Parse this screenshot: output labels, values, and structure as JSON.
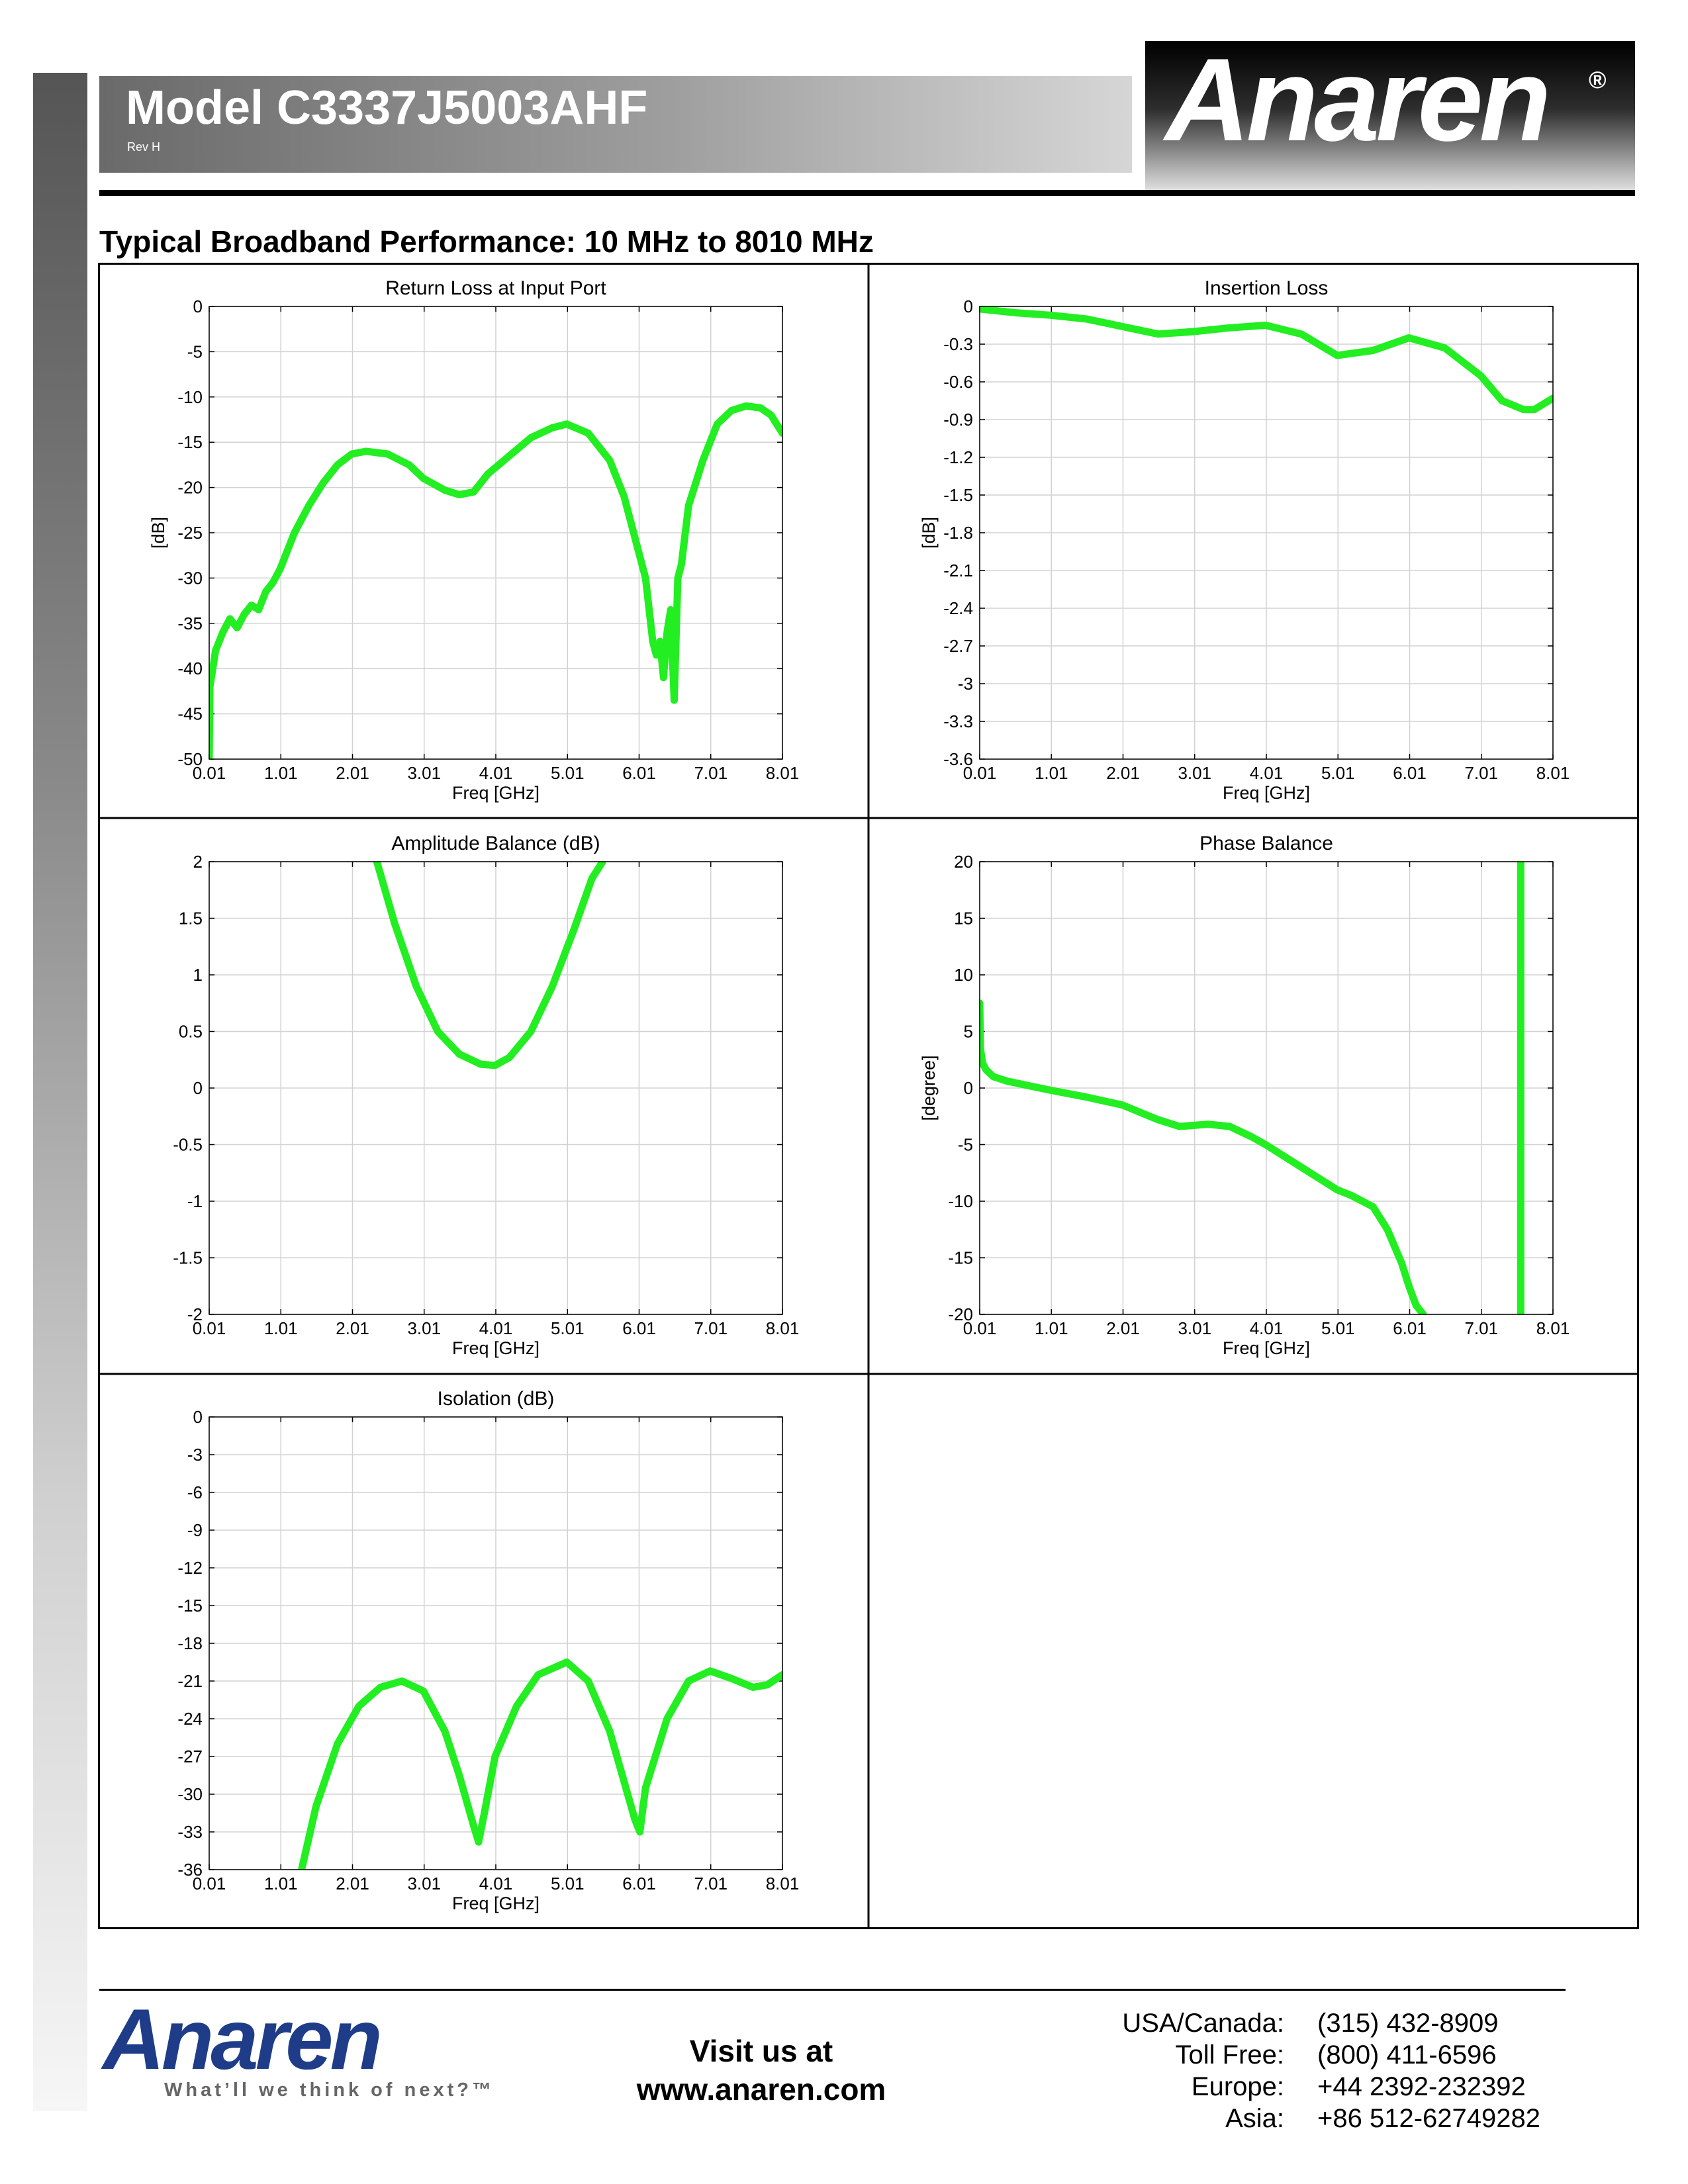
{
  "header": {
    "model_title": "Model C3337J5003AHF",
    "revision": "Rev H",
    "logo_text": "Anaren",
    "logo_mark": "®"
  },
  "section_title": "Typical Broadband Performance: 10 MHz to 8010 MHz",
  "chart_data": [
    {
      "type": "line",
      "title": "Return Loss at Input Port",
      "xlabel": "Freq [GHz]",
      "ylabel": "[dB]",
      "xticks": [
        "0.01",
        "1.01",
        "2.01",
        "3.01",
        "4.01",
        "5.01",
        "6.01",
        "7.01",
        "8.01"
      ],
      "yticks": [
        "0",
        "-5",
        "-10",
        "-15",
        "-20",
        "-25",
        "-30",
        "-35",
        "-40",
        "-45",
        "-50"
      ],
      "xlim": [
        0.01,
        8.01
      ],
      "ylim": [
        -50,
        0
      ],
      "grid": true,
      "color": "#22ee22",
      "series": [
        {
          "x": [
            0.01,
            0.02,
            0.1,
            0.2,
            0.3,
            0.4,
            0.5,
            0.6,
            0.7,
            0.8,
            0.9,
            1.0,
            1.1,
            1.2,
            1.4,
            1.6,
            1.8,
            2.0,
            2.2,
            2.5,
            2.8,
            3.0,
            3.3,
            3.5,
            3.7,
            3.9,
            4.2,
            4.5,
            4.8,
            5.0,
            5.3,
            5.6,
            5.8,
            6.0,
            6.1,
            6.2,
            6.25,
            6.3,
            6.35,
            6.4,
            6.45,
            6.5,
            6.55,
            6.6,
            6.7,
            6.9,
            7.1,
            7.3,
            7.5,
            7.7,
            7.85,
            8.01
          ],
          "y": [
            -50,
            -42,
            -38,
            -36,
            -34.5,
            -35.5,
            -34,
            -33,
            -33.5,
            -31.5,
            -30.5,
            -29,
            -27,
            -25,
            -22,
            -19.5,
            -17.5,
            -16.3,
            -16,
            -16.3,
            -17.5,
            -19,
            -20.3,
            -20.8,
            -20.5,
            -18.5,
            -16.5,
            -14.5,
            -13.4,
            -13,
            -14,
            -17,
            -21,
            -27,
            -30,
            -37,
            -38.5,
            -37,
            -41,
            -36,
            -33.5,
            -43.5,
            -30,
            -28.5,
            -22,
            -17,
            -13,
            -11.5,
            -11,
            -11.2,
            -12,
            -14
          ]
        }
      ]
    },
    {
      "type": "line",
      "title": "Insertion Loss",
      "xlabel": "Freq [GHz]",
      "ylabel": "[dB]",
      "xticks": [
        "0.01",
        "1.01",
        "2.01",
        "3.01",
        "4.01",
        "5.01",
        "6.01",
        "7.01",
        "8.01"
      ],
      "yticks": [
        "0",
        "-0.3",
        "-0.6",
        "-0.9",
        "-1.2",
        "-1.5",
        "-1.8",
        "-2.1",
        "-2.4",
        "-2.7",
        "-3",
        "-3.3",
        "-3.6"
      ],
      "xlim": [
        0.01,
        8.01
      ],
      "ylim": [
        -3.6,
        0
      ],
      "grid": true,
      "color": "#22ee22",
      "series": [
        {
          "x": [
            0.01,
            0.5,
            1.0,
            1.5,
            2.0,
            2.5,
            3.0,
            3.5,
            4.0,
            4.5,
            5.0,
            5.5,
            6.0,
            6.5,
            7.0,
            7.3,
            7.6,
            7.75,
            8.01
          ],
          "y": [
            -0.02,
            -0.05,
            -0.07,
            -0.1,
            -0.16,
            -0.22,
            -0.2,
            -0.17,
            -0.15,
            -0.22,
            -0.39,
            -0.35,
            -0.25,
            -0.33,
            -0.55,
            -0.75,
            -0.82,
            -0.82,
            -0.73
          ]
        }
      ]
    },
    {
      "type": "line",
      "title": "Amplitude Balance (dB)",
      "xlabel": "Freq [GHz]",
      "ylabel": "",
      "xticks": [
        "0.01",
        "1.01",
        "2.01",
        "3.01",
        "4.01",
        "5.01",
        "6.01",
        "7.01",
        "8.01"
      ],
      "yticks": [
        "2",
        "1.5",
        "1",
        "0.5",
        "0",
        "-0.5",
        "-1",
        "-1.5",
        "-2"
      ],
      "xlim": [
        0.01,
        8.01
      ],
      "ylim": [
        -2,
        2
      ],
      "grid": true,
      "color": "#22ee22",
      "series": [
        {
          "x": [
            2.35,
            2.6,
            2.9,
            3.2,
            3.5,
            3.8,
            4.0,
            4.2,
            4.5,
            4.8,
            5.1,
            5.35,
            5.5
          ],
          "y": [
            2,
            1.45,
            0.9,
            0.5,
            0.3,
            0.21,
            0.2,
            0.27,
            0.5,
            0.9,
            1.4,
            1.85,
            2
          ]
        }
      ]
    },
    {
      "type": "line",
      "title": "Phase Balance",
      "xlabel": "Freq [GHz]",
      "ylabel": "[degree]",
      "xticks": [
        "0.01",
        "1.01",
        "2.01",
        "3.01",
        "4.01",
        "5.01",
        "6.01",
        "7.01",
        "8.01"
      ],
      "yticks": [
        "20",
        "15",
        "10",
        "5",
        "0",
        "-5",
        "-10",
        "-15",
        "-20"
      ],
      "xlim": [
        0.01,
        8.01
      ],
      "ylim": [
        -20,
        20
      ],
      "grid": true,
      "color": "#22ee22",
      "series": [
        {
          "x": [
            0.01,
            0.02,
            0.05,
            0.1,
            0.2,
            0.4,
            0.7,
            1.0,
            1.5,
            2.0,
            2.5,
            2.8,
            3.0,
            3.2,
            3.5,
            3.8,
            4.0,
            4.5,
            5.0,
            5.2,
            5.5,
            5.7,
            5.9,
            6.0,
            6.1,
            6.2
          ],
          "y": [
            7.5,
            3.5,
            2.2,
            1.6,
            1.0,
            0.6,
            0.2,
            -0.2,
            -0.8,
            -1.5,
            -2.8,
            -3.4,
            -3.3,
            -3.2,
            -3.4,
            -4.3,
            -5.0,
            -7.0,
            -9.0,
            -9.5,
            -10.5,
            -12.5,
            -15.5,
            -17.5,
            -19.2,
            -20
          ]
        },
        {
          "x": [
            7.56,
            7.56
          ],
          "y": [
            -20,
            20
          ]
        }
      ]
    },
    {
      "type": "line",
      "title": "Isolation (dB)",
      "xlabel": "Freq [GHz]",
      "ylabel": "",
      "xticks": [
        "0.01",
        "1.01",
        "2.01",
        "3.01",
        "4.01",
        "5.01",
        "6.01",
        "7.01",
        "8.01"
      ],
      "yticks": [
        "0",
        "-3",
        "-6",
        "-9",
        "-12",
        "-15",
        "-18",
        "-21",
        "-24",
        "-27",
        "-30",
        "-33",
        "-36"
      ],
      "xlim": [
        0.01,
        8.01
      ],
      "ylim": [
        -36,
        0
      ],
      "grid": true,
      "color": "#22ee22",
      "series": [
        {
          "x": [
            1.3,
            1.5,
            1.8,
            2.1,
            2.4,
            2.7,
            3.0,
            3.3,
            3.5,
            3.7,
            3.77,
            3.85,
            4.0,
            4.3,
            4.6,
            5.0,
            5.3,
            5.6,
            5.8,
            5.95,
            6.02,
            6.1,
            6.4,
            6.7,
            7.0,
            7.3,
            7.6,
            7.8,
            8.01
          ],
          "y": [
            -36,
            -31,
            -26,
            -23,
            -21.5,
            -21,
            -21.8,
            -25,
            -28.5,
            -32.5,
            -33.8,
            -31.5,
            -27,
            -23,
            -20.5,
            -19.5,
            -21,
            -25,
            -29,
            -32,
            -33,
            -29.5,
            -24,
            -21,
            -20.2,
            -20.8,
            -21.5,
            -21.3,
            -20.5
          ]
        }
      ]
    }
  ],
  "footer": {
    "logo_text": "Anaren",
    "tagline": "What’ll we think of next?™",
    "visit_line1": "Visit us at",
    "visit_line2": "www.anaren.com",
    "contacts": [
      {
        "label": "USA/Canada:",
        "value": "(315) 432-8909"
      },
      {
        "label": "Toll Free:",
        "value": "(800) 411-6596"
      },
      {
        "label": "Europe:",
        "value": "+44 2392-232392"
      },
      {
        "label": "Asia:",
        "value": "+86 512-62749282"
      }
    ]
  }
}
